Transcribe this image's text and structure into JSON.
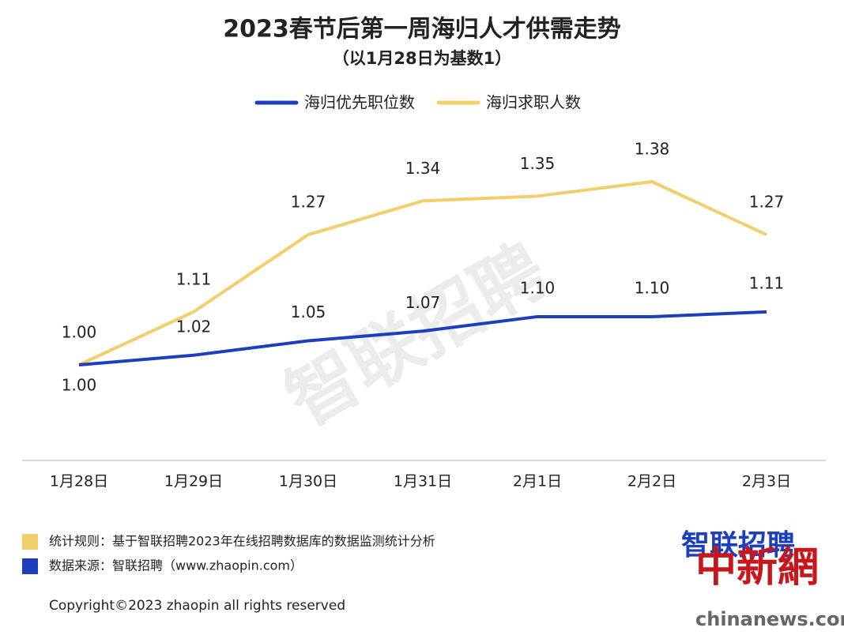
{
  "chart_data": {
    "type": "line",
    "title": "2023春节后第一周海归人才供需走势",
    "subtitle": "（以1月28日为基数1）",
    "categories": [
      "1月28日",
      "1月29日",
      "1月30日",
      "1月31日",
      "2月1日",
      "2月2日",
      "2月3日"
    ],
    "series": [
      {
        "name": "海归优先职位数",
        "color": "#1d3fbd",
        "values": [
          1.0,
          1.02,
          1.05,
          1.07,
          1.1,
          1.1,
          1.11
        ],
        "value_labels": [
          "1.00",
          "1.02",
          "1.05",
          "1.07",
          "1.10",
          "1.10",
          "1.11"
        ]
      },
      {
        "name": "海归求职人数",
        "color": "#f3cf6c",
        "values": [
          1.0,
          1.11,
          1.27,
          1.34,
          1.35,
          1.38,
          1.27
        ],
        "value_labels": [
          "1.00",
          "1.11",
          "1.27",
          "1.34",
          "1.35",
          "1.38",
          "1.27"
        ]
      }
    ],
    "legend": "top",
    "notes": [
      {
        "color": "#f3cf6c",
        "text": "统计规则：基于智联招聘2023年在线招聘数据库的数据监测统计分析"
      },
      {
        "color": "#1d3fbd",
        "text": "数据来源：智联招聘（www.zhaopin.com）"
      }
    ],
    "copyright": "Copyright©2023 zhaopin all rights reserved",
    "logo": "智联招聘",
    "watermark": "智联招聘",
    "press_mark": "中新網",
    "press_site": "chinanews.com"
  }
}
